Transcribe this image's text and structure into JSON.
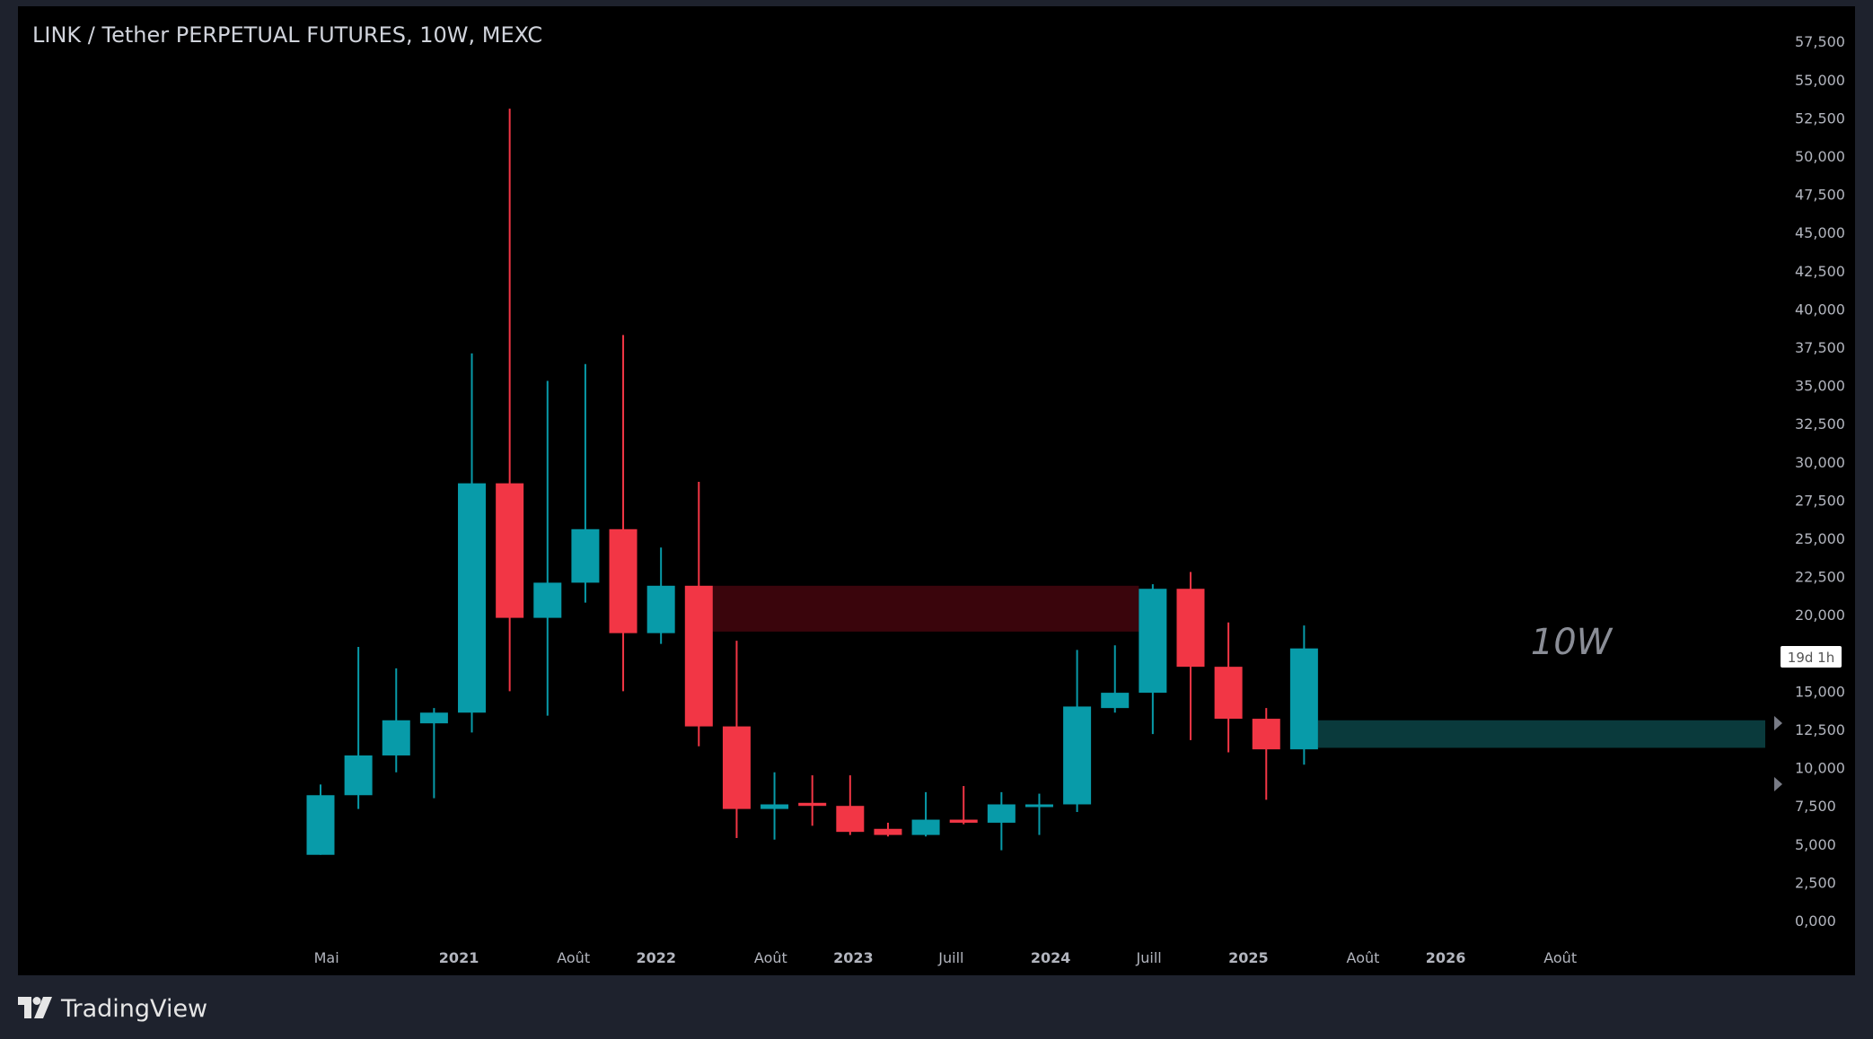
{
  "title": "LINK / Tether PERPETUAL FUTURES, 10W, MEXC",
  "brand": "TradingView",
  "timeframe_watermark": "10W",
  "countdown_label": "19d 1h",
  "colors": {
    "up": "#089ba9",
    "down": "#f23645",
    "background": "#000000",
    "frame": "#1e222d",
    "axis_text": "#b2b5be",
    "supply_zone": "#3a050c",
    "demand_zone": "#0a3a3c"
  },
  "chart_data": {
    "type": "candlestick",
    "title": "LINK / Tether PERPETUAL FUTURES, 10W, MEXC",
    "y_axis": {
      "min": 0,
      "max": 57500,
      "step": 2500,
      "tick_labels": [
        "57,500",
        "55,000",
        "52,500",
        "50,000",
        "47,500",
        "45,000",
        "42,500",
        "40,000",
        "37,500",
        "35,000",
        "32,500",
        "30,000",
        "27,500",
        "25,000",
        "22,500",
        "20,000",
        "15,000",
        "12,500",
        "10,000",
        "7,500",
        "5,000",
        "2,500",
        "0,000"
      ]
    },
    "x_axis": {
      "tick_labels": [
        {
          "label": "Mai",
          "bold": false,
          "date": "2020-05"
        },
        {
          "label": "2021",
          "bold": true,
          "date": "2021-01"
        },
        {
          "label": "Août",
          "bold": false,
          "date": "2021-08"
        },
        {
          "label": "2022",
          "bold": true,
          "date": "2022-01"
        },
        {
          "label": "Août",
          "bold": false,
          "date": "2022-08"
        },
        {
          "label": "2023",
          "bold": true,
          "date": "2023-01"
        },
        {
          "label": "Juill",
          "bold": false,
          "date": "2023-07"
        },
        {
          "label": "2024",
          "bold": true,
          "date": "2024-01"
        },
        {
          "label": "Juill",
          "bold": false,
          "date": "2024-07"
        },
        {
          "label": "2025",
          "bold": true,
          "date": "2025-01"
        },
        {
          "label": "Août",
          "bold": false,
          "date": "2025-08"
        },
        {
          "label": "2026",
          "bold": true,
          "date": "2026-01"
        },
        {
          "label": "Août",
          "bold": false,
          "date": "2026-08"
        }
      ]
    },
    "candles": [
      {
        "o": 4300,
        "h": 8900,
        "l": 4300,
        "c": 8200
      },
      {
        "o": 8200,
        "h": 17900,
        "l": 7300,
        "c": 10800
      },
      {
        "o": 10800,
        "h": 16500,
        "l": 9700,
        "c": 13100
      },
      {
        "o": 12900,
        "h": 13900,
        "l": 8000,
        "c": 13600
      },
      {
        "o": 13600,
        "h": 37100,
        "l": 12300,
        "c": 28600
      },
      {
        "o": 28600,
        "h": 53100,
        "l": 15000,
        "c": 19800
      },
      {
        "o": 19800,
        "h": 35300,
        "l": 13400,
        "c": 22100
      },
      {
        "o": 22100,
        "h": 36400,
        "l": 20800,
        "c": 25600
      },
      {
        "o": 25600,
        "h": 38300,
        "l": 15000,
        "c": 18800
      },
      {
        "o": 18800,
        "h": 24400,
        "l": 18100,
        "c": 21900
      },
      {
        "o": 21900,
        "h": 28700,
        "l": 11400,
        "c": 12700
      },
      {
        "o": 12700,
        "h": 18300,
        "l": 5400,
        "c": 7300
      },
      {
        "o": 7300,
        "h": 9700,
        "l": 5300,
        "c": 7600
      },
      {
        "o": 7700,
        "h": 9500,
        "l": 6200,
        "c": 7500
      },
      {
        "o": 7500,
        "h": 9500,
        "l": 5600,
        "c": 5800
      },
      {
        "o": 6000,
        "h": 6400,
        "l": 5500,
        "c": 5600
      },
      {
        "o": 5600,
        "h": 8400,
        "l": 5500,
        "c": 6600
      },
      {
        "o": 6600,
        "h": 8800,
        "l": 6300,
        "c": 6400
      },
      {
        "o": 6400,
        "h": 8400,
        "l": 4600,
        "c": 7600
      },
      {
        "o": 7500,
        "h": 8300,
        "l": 5600,
        "c": 7600
      },
      {
        "o": 7600,
        "h": 17700,
        "l": 7100,
        "c": 14000
      },
      {
        "o": 13900,
        "h": 18000,
        "l": 13600,
        "c": 14900
      },
      {
        "o": 14900,
        "h": 22000,
        "l": 12200,
        "c": 21700
      },
      {
        "o": 21700,
        "h": 22800,
        "l": 11800,
        "c": 16600
      },
      {
        "o": 16600,
        "h": 19500,
        "l": 11000,
        "c": 13200
      },
      {
        "o": 13200,
        "h": 13900,
        "l": 7900,
        "c": 11200
      },
      {
        "o": 11200,
        "h": 19300,
        "l": 10200,
        "c": 17800
      }
    ],
    "zones": [
      {
        "type": "supply",
        "from_candle": 10,
        "to_candle": 22,
        "top": 21900,
        "bottom": 18900
      },
      {
        "type": "demand",
        "from_candle": 26,
        "to": "axis",
        "top": 13100,
        "bottom": 11300
      }
    ],
    "grid": false
  }
}
